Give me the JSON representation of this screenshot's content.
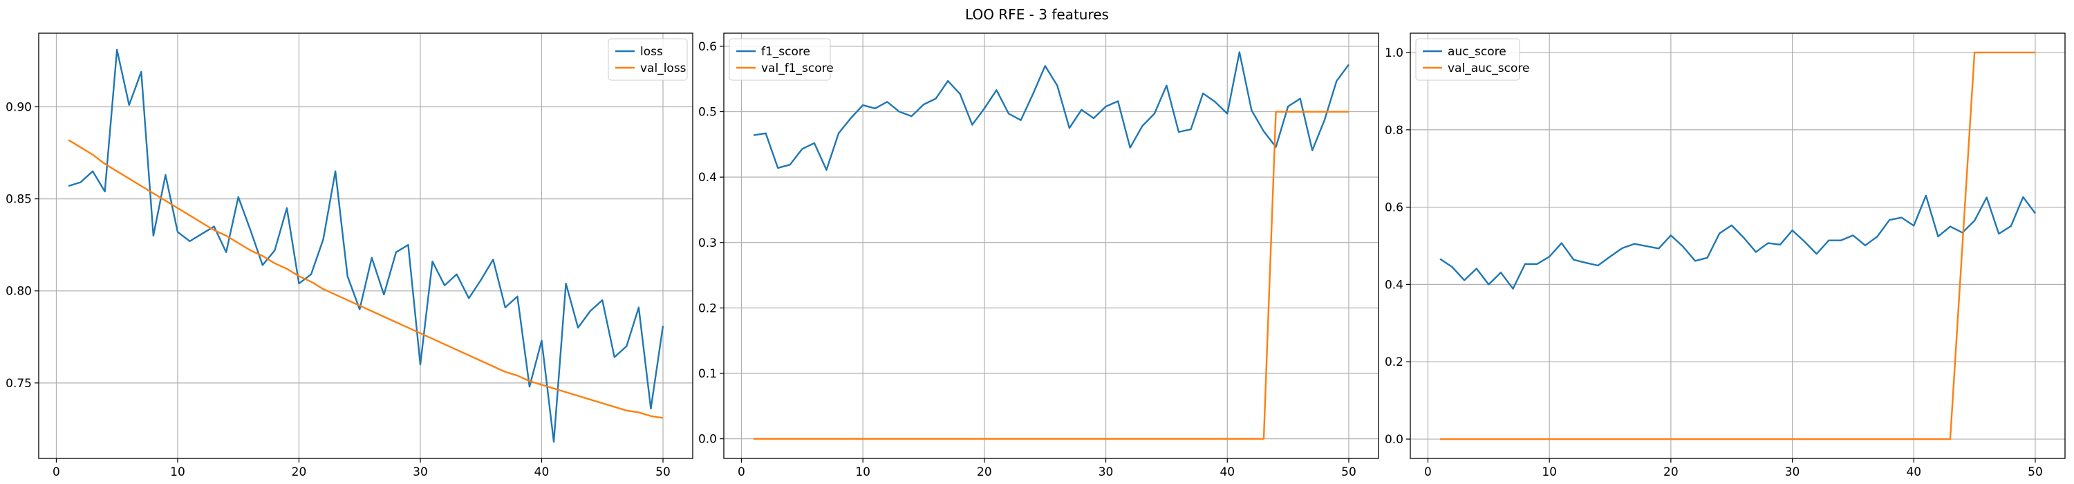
{
  "figure": {
    "suptitle": "LOO RFE - 3 features"
  },
  "chart_data": [
    {
      "type": "line",
      "title": "",
      "xlabel": "",
      "ylabel": "",
      "xlim": [
        -1.45,
        52.45
      ],
      "ylim": [
        0.709,
        0.94
      ],
      "xticks": [
        0,
        10,
        20,
        30,
        40,
        50
      ],
      "yticks": [
        0.75,
        0.8,
        0.85,
        0.9
      ],
      "ytick_labels": [
        "0.75",
        "0.80",
        "0.85",
        "0.90"
      ],
      "grid": true,
      "legend_position": "upper right",
      "x": [
        1,
        2,
        3,
        4,
        5,
        6,
        7,
        8,
        9,
        10,
        11,
        12,
        13,
        14,
        15,
        16,
        17,
        18,
        19,
        20,
        21,
        22,
        23,
        24,
        25,
        26,
        27,
        28,
        29,
        30,
        31,
        32,
        33,
        34,
        35,
        36,
        37,
        38,
        39,
        40,
        41,
        42,
        43,
        44,
        45,
        46,
        47,
        48,
        49,
        50
      ],
      "series": [
        {
          "name": "loss",
          "color": "#1f77b4",
          "values": [
            0.857,
            0.859,
            0.865,
            0.854,
            0.931,
            0.901,
            0.919,
            0.83,
            0.863,
            0.832,
            0.827,
            0.831,
            0.835,
            0.821,
            0.851,
            0.833,
            0.814,
            0.822,
            0.845,
            0.804,
            0.809,
            0.828,
            0.865,
            0.808,
            0.79,
            0.818,
            0.798,
            0.821,
            0.825,
            0.76,
            0.816,
            0.803,
            0.809,
            0.796,
            0.806,
            0.817,
            0.791,
            0.797,
            0.748,
            0.773,
            0.718,
            0.804,
            0.78,
            0.789,
            0.795,
            0.764,
            0.77,
            0.791,
            0.736,
            0.781
          ]
        },
        {
          "name": "val_loss",
          "color": "#ff7f0e",
          "values": [
            0.882,
            0.878,
            0.874,
            0.869,
            0.865,
            0.861,
            0.857,
            0.853,
            0.849,
            0.845,
            0.841,
            0.837,
            0.833,
            0.83,
            0.826,
            0.822,
            0.819,
            0.815,
            0.812,
            0.808,
            0.805,
            0.801,
            0.798,
            0.795,
            0.792,
            0.789,
            0.786,
            0.783,
            0.78,
            0.777,
            0.774,
            0.771,
            0.768,
            0.765,
            0.762,
            0.759,
            0.756,
            0.754,
            0.751,
            0.749,
            0.747,
            0.745,
            0.743,
            0.741,
            0.739,
            0.737,
            0.735,
            0.734,
            0.732,
            0.731
          ]
        }
      ]
    },
    {
      "type": "line",
      "title": "",
      "xlabel": "",
      "ylabel": "",
      "xlim": [
        -1.45,
        52.45
      ],
      "ylim": [
        -0.03,
        0.62
      ],
      "xticks": [
        0,
        10,
        20,
        30,
        40,
        50
      ],
      "yticks": [
        0.0,
        0.1,
        0.2,
        0.3,
        0.4,
        0.5,
        0.6
      ],
      "ytick_labels": [
        "0.0",
        "0.1",
        "0.2",
        "0.3",
        "0.4",
        "0.5",
        "0.6"
      ],
      "grid": true,
      "legend_position": "upper left",
      "x": [
        1,
        2,
        3,
        4,
        5,
        6,
        7,
        8,
        9,
        10,
        11,
        12,
        13,
        14,
        15,
        16,
        17,
        18,
        19,
        20,
        21,
        22,
        23,
        24,
        25,
        26,
        27,
        28,
        29,
        30,
        31,
        32,
        33,
        34,
        35,
        36,
        37,
        38,
        39,
        40,
        41,
        42,
        43,
        44,
        45,
        46,
        47,
        48,
        49,
        50
      ],
      "series": [
        {
          "name": "f1_score",
          "color": "#1f77b4",
          "values": [
            0.464,
            0.467,
            0.414,
            0.419,
            0.443,
            0.452,
            0.411,
            0.467,
            0.49,
            0.51,
            0.505,
            0.515,
            0.5,
            0.493,
            0.511,
            0.52,
            0.547,
            0.527,
            0.48,
            0.505,
            0.533,
            0.497,
            0.487,
            0.527,
            0.57,
            0.54,
            0.475,
            0.503,
            0.49,
            0.508,
            0.516,
            0.445,
            0.478,
            0.497,
            0.54,
            0.469,
            0.473,
            0.528,
            0.515,
            0.497,
            0.591,
            0.502,
            0.47,
            0.446,
            0.508,
            0.52,
            0.441,
            0.487,
            0.547,
            0.572
          ]
        },
        {
          "name": "val_f1_score",
          "color": "#ff7f0e",
          "values": [
            0,
            0,
            0,
            0,
            0,
            0,
            0,
            0,
            0,
            0,
            0,
            0,
            0,
            0,
            0,
            0,
            0,
            0,
            0,
            0,
            0,
            0,
            0,
            0,
            0,
            0,
            0,
            0,
            0,
            0,
            0,
            0,
            0,
            0,
            0,
            0,
            0,
            0,
            0,
            0,
            0,
            0,
            0,
            0.5,
            0.5,
            0.5,
            0.5,
            0.5,
            0.5,
            0.5
          ]
        }
      ]
    },
    {
      "type": "line",
      "title": "",
      "xlabel": "",
      "ylabel": "",
      "xlim": [
        -1.45,
        52.45
      ],
      "ylim": [
        -0.05,
        1.05
      ],
      "xticks": [
        0,
        10,
        20,
        30,
        40,
        50
      ],
      "yticks": [
        0.0,
        0.2,
        0.4,
        0.6,
        0.8,
        1.0
      ],
      "ytick_labels": [
        "0.0",
        "0.2",
        "0.4",
        "0.6",
        "0.8",
        "1.0"
      ],
      "grid": true,
      "legend_position": "upper left",
      "x": [
        1,
        2,
        3,
        4,
        5,
        6,
        7,
        8,
        9,
        10,
        11,
        12,
        13,
        14,
        15,
        16,
        17,
        18,
        19,
        20,
        21,
        22,
        23,
        24,
        25,
        26,
        27,
        28,
        29,
        30,
        31,
        32,
        33,
        34,
        35,
        36,
        37,
        38,
        39,
        40,
        41,
        42,
        43,
        44,
        45,
        46,
        47,
        48,
        49,
        50
      ],
      "series": [
        {
          "name": "auc_score",
          "color": "#1f77b4",
          "values": [
            0.466,
            0.445,
            0.411,
            0.441,
            0.4,
            0.431,
            0.389,
            0.453,
            0.453,
            0.472,
            0.507,
            0.464,
            0.456,
            0.449,
            0.472,
            0.494,
            0.505,
            0.499,
            0.493,
            0.527,
            0.498,
            0.461,
            0.469,
            0.532,
            0.553,
            0.521,
            0.484,
            0.507,
            0.503,
            0.54,
            0.511,
            0.479,
            0.514,
            0.514,
            0.527,
            0.501,
            0.524,
            0.567,
            0.573,
            0.552,
            0.63,
            0.524,
            0.55,
            0.534,
            0.565,
            0.625,
            0.531,
            0.551,
            0.626,
            0.584
          ]
        },
        {
          "name": "val_auc_score",
          "color": "#ff7f0e",
          "values": [
            0,
            0,
            0,
            0,
            0,
            0,
            0,
            0,
            0,
            0,
            0,
            0,
            0,
            0,
            0,
            0,
            0,
            0,
            0,
            0,
            0,
            0,
            0,
            0,
            0,
            0,
            0,
            0,
            0,
            0,
            0,
            0,
            0,
            0,
            0,
            0,
            0,
            0,
            0,
            0,
            0,
            0,
            0,
            0.5,
            1,
            1,
            1,
            1,
            1,
            1
          ]
        }
      ]
    }
  ]
}
